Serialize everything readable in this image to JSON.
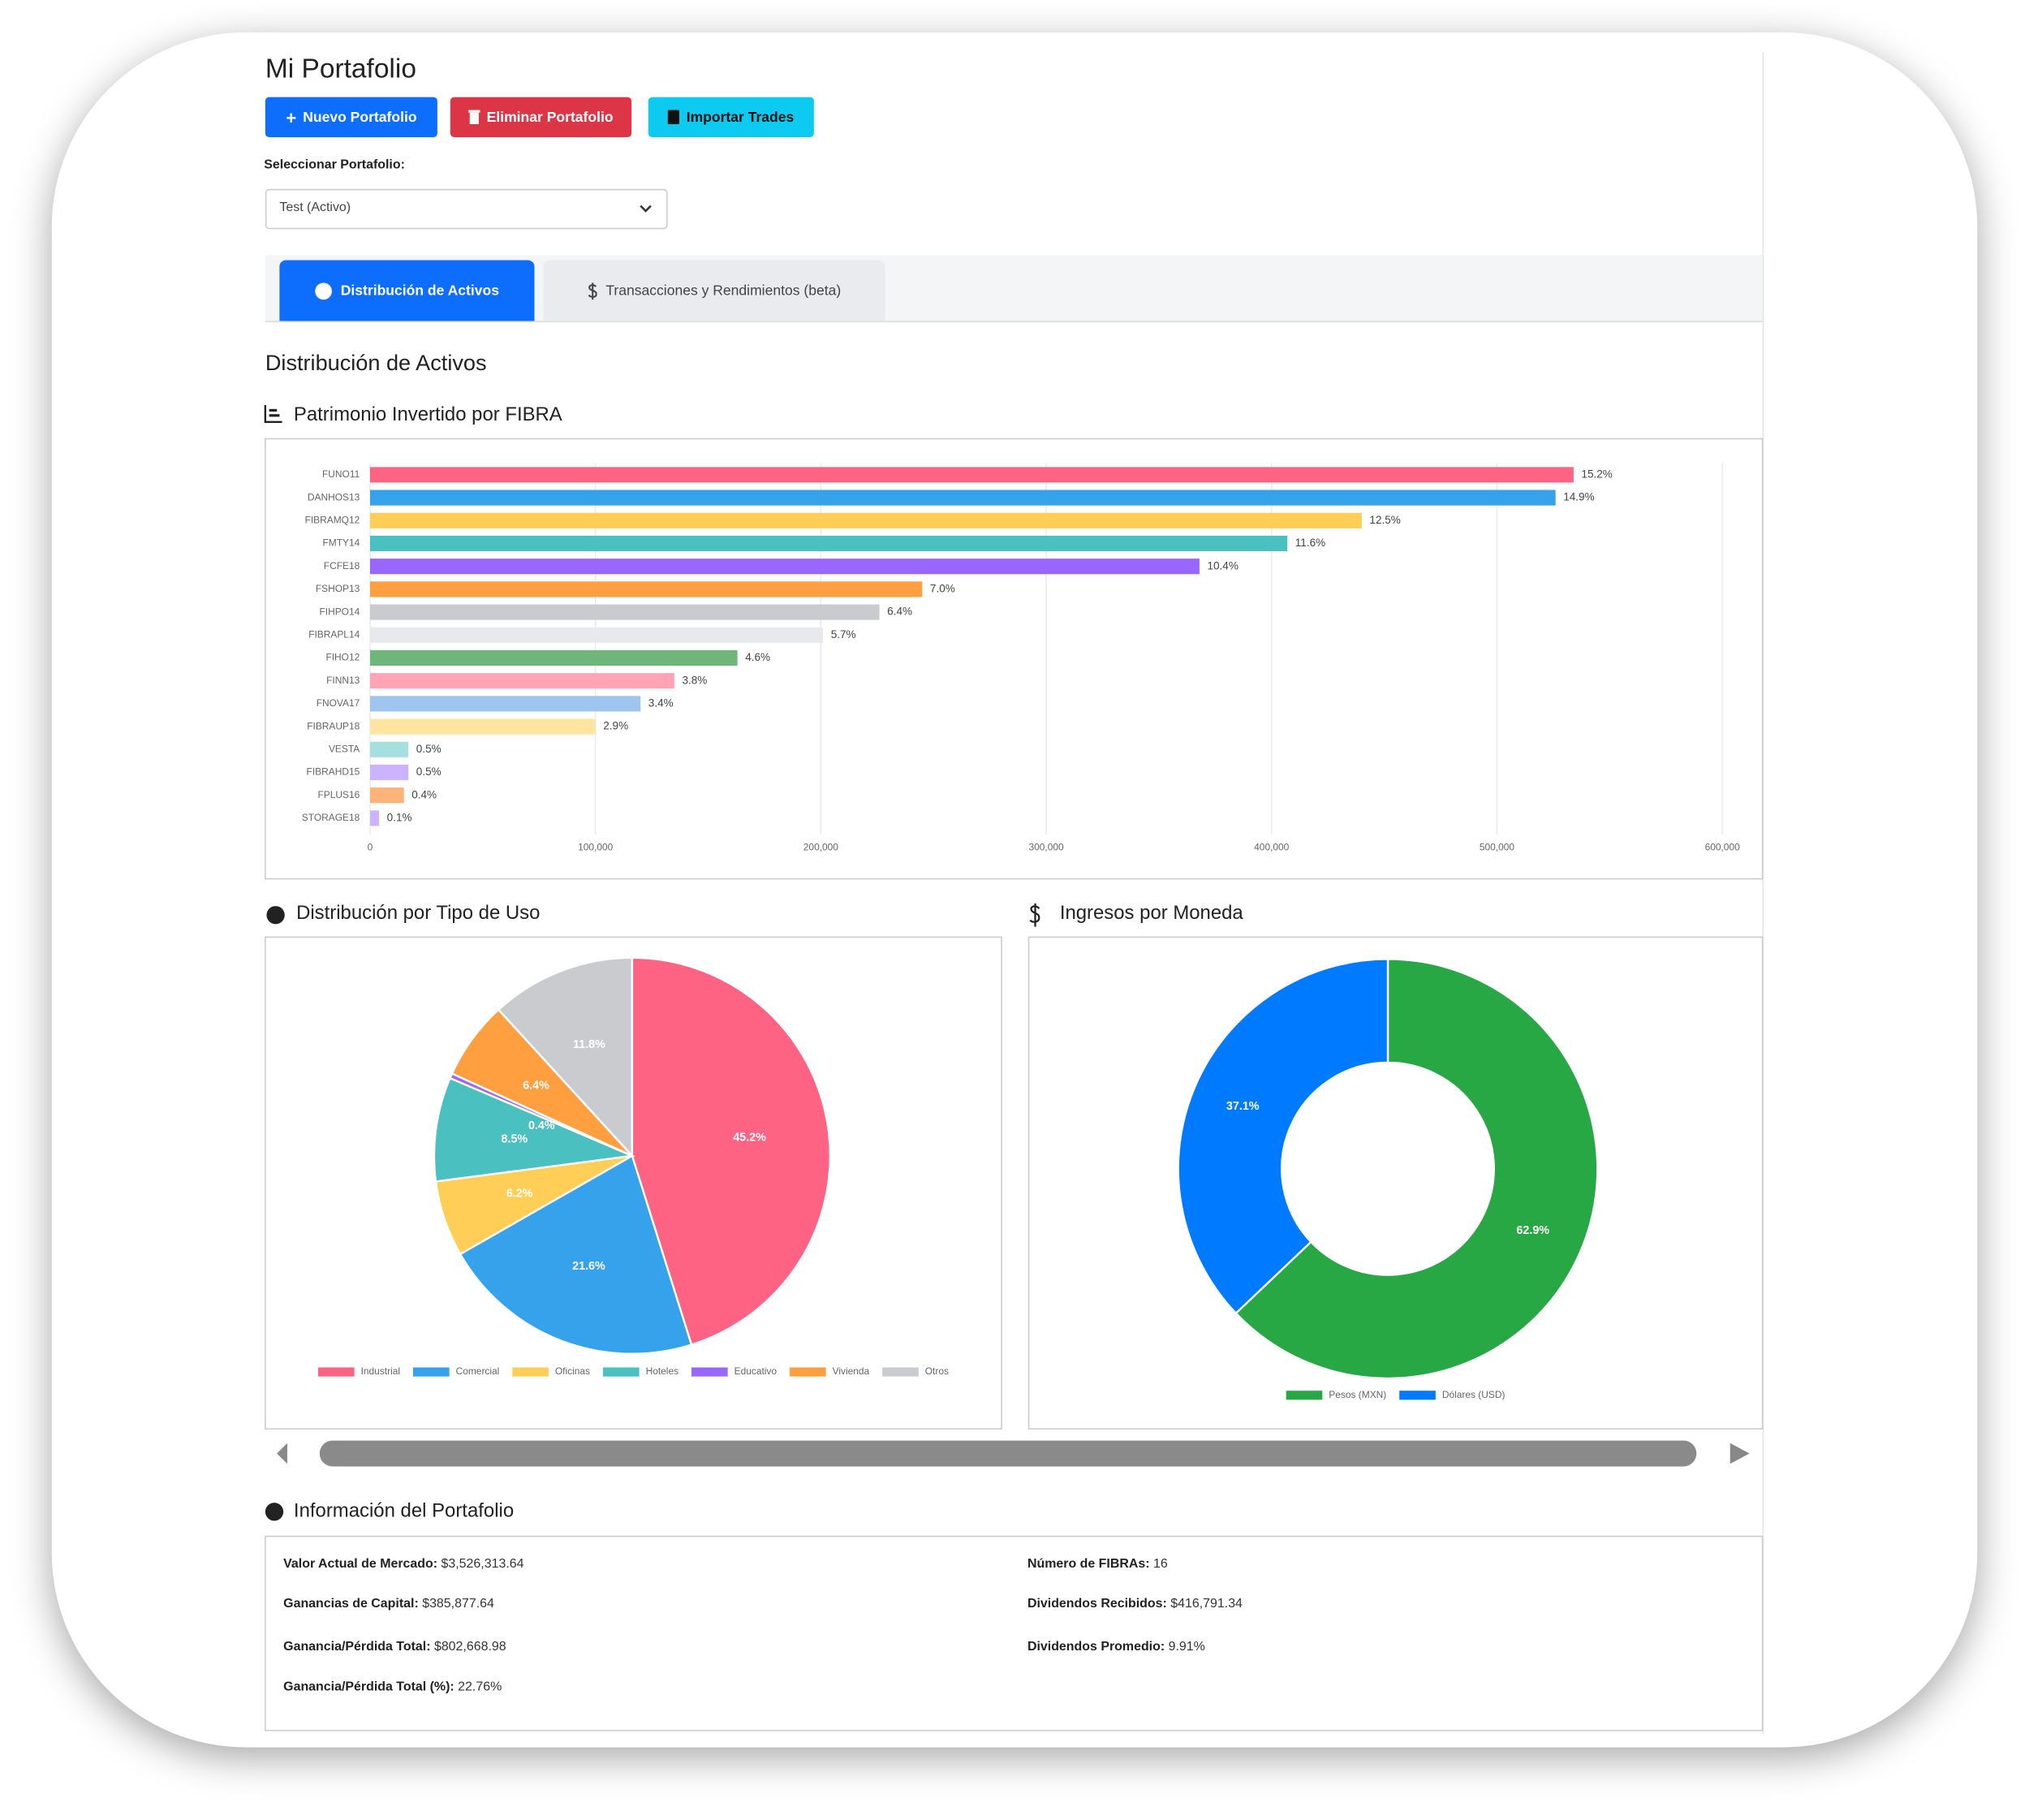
{
  "header": {
    "title": "Mi Portafolio"
  },
  "buttons": [
    "Nuevo Portafolio",
    "Eliminar Portafolio",
    "Importar Trades"
  ],
  "selector": {
    "label": "Seleccionar Portafolio:",
    "value": "Test (Activo)"
  },
  "tabs": [
    "Distribución de Activos",
    "Transacciones y Rendimientos (beta)"
  ],
  "section_title": "Distribución de Activos",
  "chart_data": [
    {
      "type": "bar",
      "title": "Patrimonio Invertido por FIBRA",
      "categories": [
        "FUNO11",
        "DANHOS13",
        "FIBRAMQ12",
        "FMTY14",
        "FCFE18",
        "FSHOP13",
        "FIHPO14",
        "FIBRAPL14",
        "FIHO12",
        "FINN13",
        "FNOVA17",
        "FIBRAUP18",
        "VESTA",
        "FIBRAHD15",
        "FPLUS16",
        "STORAGE18"
      ],
      "values": [
        534000,
        526000,
        440000,
        407000,
        368000,
        245000,
        226000,
        201000,
        163000,
        135000,
        120000,
        100000,
        17000,
        17000,
        15000,
        4000
      ],
      "share_labels": [
        "15.2%",
        "14.9%",
        "12.5%",
        "11.6%",
        "10.4%",
        "7.0%",
        "6.4%",
        "5.7%",
        "4.6%",
        "3.8%",
        "3.4%",
        "2.9%",
        "0.5%",
        "0.5%",
        "0.4%",
        "0.1%"
      ],
      "colors": [
        "#ff6384",
        "#36a2eb",
        "#ffce56",
        "#4bc0c0",
        "#9966ff",
        "#ff9f40",
        "#c9cbcf",
        "#e7e9ed",
        "#6fb67a",
        "#ffa3b5",
        "#9ec5ee",
        "#ffe5a0",
        "#a5dfdf",
        "#ccb3ff",
        "#ffb27a",
        "#ccb3ff"
      ],
      "xlim": [
        0,
        600000
      ],
      "xticks": [
        0,
        {
          "value": 100000,
          "label": "100,000"
        },
        {
          "value": 200000,
          "label": "200,000"
        },
        {
          "value": 300000,
          "label": "300,000"
        },
        {
          "value": 400000,
          "label": "400,000"
        },
        {
          "value": 500000,
          "label": "500,000"
        },
        {
          "value": 600000,
          "label": "600,000"
        }
      ],
      "grid": true
    },
    {
      "type": "pie",
      "title": "Distribución por Tipo de Uso",
      "categories": [
        "Industrial",
        "Comercial",
        "Oficinas",
        "Hoteles",
        "Educativo",
        "Vivienda",
        "Otros"
      ],
      "values": [
        45.2,
        21.6,
        6.2,
        8.5,
        0.4,
        6.4,
        11.8
      ],
      "value_labels": [
        "45.2%",
        "21.6%",
        "6.2%",
        "8.5%",
        "0.4%",
        "6.4%",
        "11.8%"
      ],
      "colors": [
        "#ff6384",
        "#36a2eb",
        "#ffce56",
        "#4bc0c0",
        "#9966ff",
        "#ff9f40",
        "#c9cbcf"
      ],
      "legend": "bottom"
    },
    {
      "type": "doughnut",
      "title": "Ingresos por Moneda",
      "categories": [
        "Pesos (MXN)",
        "Dólares (USD)"
      ],
      "values": [
        62.9,
        37.1
      ],
      "value_labels": [
        "62.9%",
        "37.1%"
      ],
      "colors": [
        "#28a745",
        "#007bff"
      ],
      "legend": "bottom"
    }
  ],
  "info": {
    "title": "Información del Portafolio",
    "columns": [
      [
        {
          "label": "Valor Actual de Mercado:",
          "value": "$3,526,313.64"
        },
        {
          "label": "Ganancias de Capital:",
          "value": "$385,877.64"
        },
        {
          "label": "Ganancia/Pérdida Total:",
          "value": "$802,668.98"
        },
        {
          "label": "Ganancia/Pérdida Total (%):",
          "value": "22.76%"
        }
      ],
      [
        {
          "label": "Número de FIBRAs:",
          "value": "16"
        },
        {
          "label": "Dividendos Recibidos:",
          "value": "$416,791.34"
        },
        {
          "label": "Dividendos Promedio:",
          "value": "9.91%"
        }
      ]
    ]
  }
}
